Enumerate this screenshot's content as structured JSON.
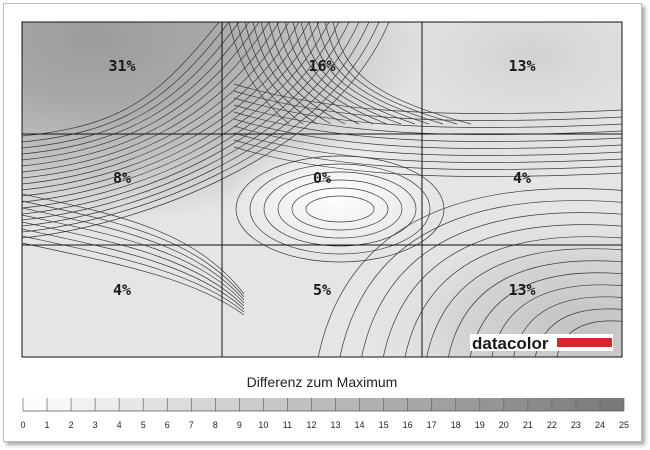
{
  "chart_data": {
    "type": "heatmap",
    "grid_rows": 3,
    "grid_cols": 3,
    "cells": [
      [
        "31%",
        "16%",
        "13%"
      ],
      [
        "8%",
        "0%",
        "4%"
      ],
      [
        "4%",
        "5%",
        "13%"
      ]
    ],
    "values": [
      [
        31,
        16,
        13
      ],
      [
        8,
        0,
        4
      ],
      [
        4,
        5,
        13
      ]
    ],
    "scale_title": "Differenz zum Maximum",
    "scale_min": 0,
    "scale_max": 25,
    "scale_ticks": [
      "0",
      "1",
      "2",
      "3",
      "4",
      "5",
      "6",
      "7",
      "8",
      "9",
      "10",
      "11",
      "12",
      "13",
      "14",
      "15",
      "16",
      "17",
      "18",
      "19",
      "20",
      "21",
      "22",
      "23",
      "24",
      "25"
    ],
    "logo_text": "datacolor",
    "colors": {
      "scale_low": "#ffffff",
      "scale_high": "#777777",
      "contour": "#3a3a3a",
      "grid": "#111111",
      "logo_bar": "#d7262d"
    }
  }
}
